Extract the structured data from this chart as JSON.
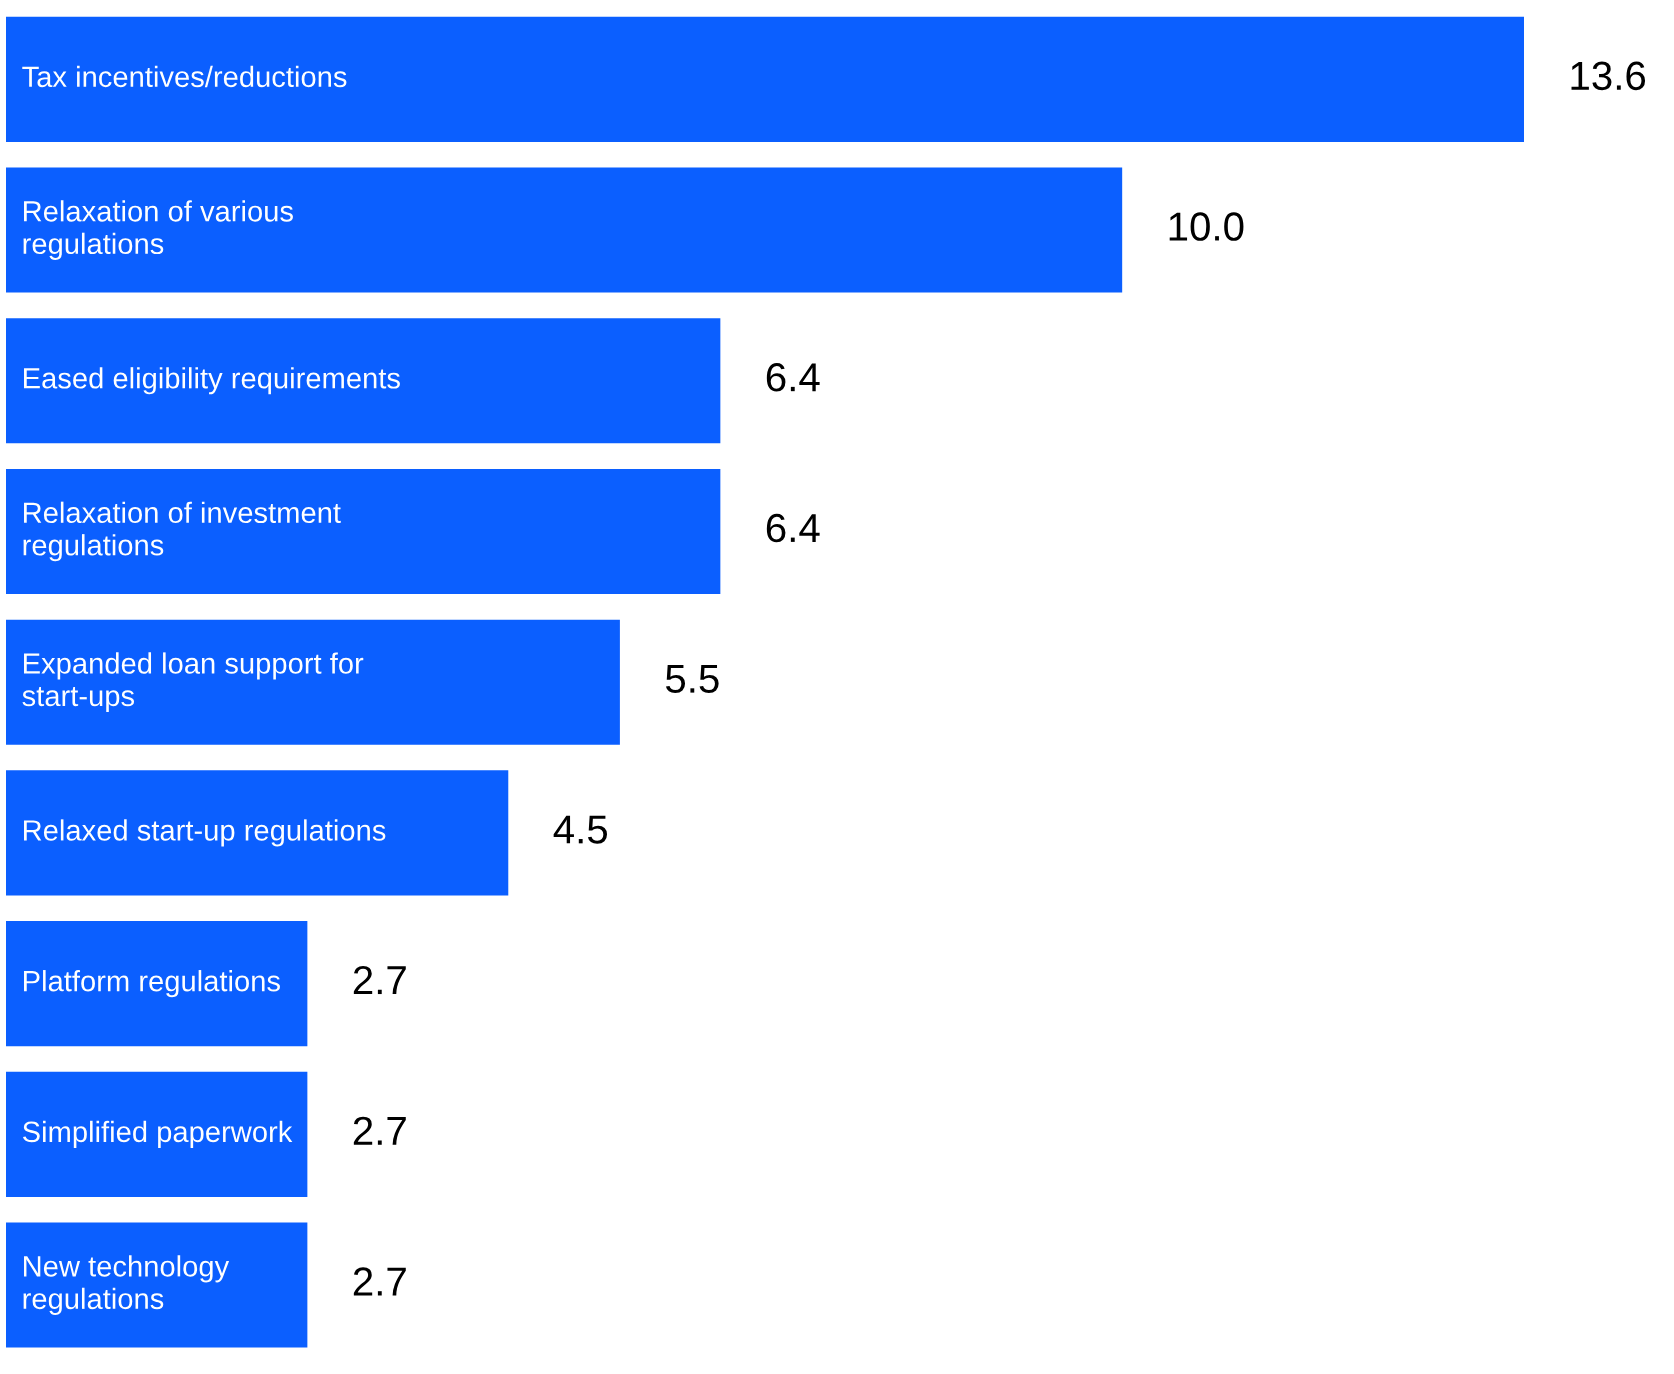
{
  "chart_data": {
    "type": "bar",
    "orientation": "horizontal",
    "categories": [
      "Tax incentives/reductions",
      "Relaxation of various\nregulations",
      "Eased eligibility requirements",
      "Relaxation of investment\nregulations",
      "Expanded loan support for\nstart-ups",
      "Relaxed start-up regulations",
      "Platform regulations",
      "Simplified paperwork",
      "New technology\nregulations"
    ],
    "values": [
      13.6,
      10.0,
      6.4,
      6.4,
      5.5,
      4.5,
      2.7,
      2.7,
      2.7
    ],
    "value_labels": [
      "13.6",
      "10.0",
      "6.4",
      "6.4",
      "5.5",
      "4.5",
      "2.7",
      "2.7",
      "2.7"
    ],
    "color": "#0b5fff"
  }
}
